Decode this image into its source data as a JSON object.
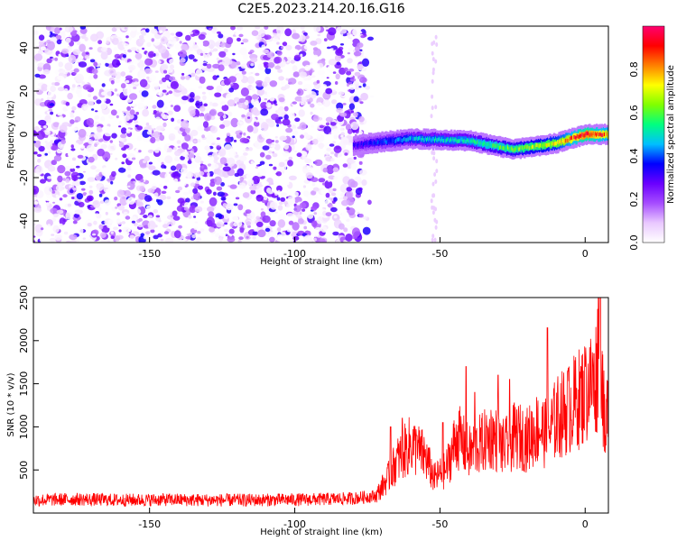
{
  "chart_data": [
    {
      "type": "heatmap",
      "title": "C2E5.2023.214.20.16.G16",
      "xlabel": "Height of straight line (km)",
      "ylabel": "Frequency (Hz)",
      "xlim": [
        -190,
        8
      ],
      "ylim": [
        -50,
        50
      ],
      "xticks": [
        -150,
        -100,
        -50,
        0
      ],
      "yticks": [
        -40,
        -20,
        0,
        20,
        40
      ],
      "colorbar": {
        "label": "Normalized spectral amplitude",
        "range": [
          0,
          1
        ],
        "ticks": [
          0.0,
          0.2,
          0.4,
          0.6,
          0.8
        ],
        "colormap": "rainbow-white-to-purple-to-red-to-magenta",
        "colors": [
          "#ffffff",
          "#e9c8ff",
          "#a64dff",
          "#6a00ff",
          "#0000ff",
          "#00bfff",
          "#00ff80",
          "#7fff00",
          "#ffff00",
          "#ff8000",
          "#ff0000",
          "#ff0070"
        ]
      },
      "features": {
        "noise_region_x": [
          -190,
          -76
        ],
        "noise_amplitude_range": [
          0.0,
          0.35
        ],
        "signal_band": {
          "x": [
            -80,
            -60,
            -40,
            -25,
            -10,
            0,
            8
          ],
          "frequency": [
            -5,
            -2,
            -3,
            -7,
            -4,
            0,
            0
          ],
          "amplitude": [
            0.3,
            0.45,
            0.5,
            0.6,
            0.7,
            0.95,
            0.8
          ]
        }
      }
    },
    {
      "type": "line",
      "title": "",
      "xlabel": "Height of straight line (km)",
      "ylabel": "SNR (10 * v/v)",
      "xlim": [
        -190,
        8
      ],
      "ylim": [
        0,
        2500
      ],
      "xticks": [
        -150,
        -100,
        -50,
        0
      ],
      "yticks": [
        500,
        1000,
        1500,
        2000,
        2500
      ],
      "color": "#ff0000",
      "series": [
        {
          "x": [
            -190,
            -175,
            -160,
            -145,
            -130,
            -115,
            -100,
            -90,
            -80,
            -72,
            -68,
            -65,
            -60,
            -55,
            -52,
            -48,
            -44,
            -40,
            -36,
            -32,
            -28,
            -24,
            -20,
            -16,
            -13,
            -10,
            -6,
            -3,
            0,
            2,
            4,
            5,
            6,
            7,
            8
          ],
          "values": [
            150,
            160,
            150,
            155,
            150,
            150,
            155,
            160,
            170,
            200,
            400,
            600,
            800,
            650,
            400,
            500,
            900,
            700,
            800,
            900,
            750,
            900,
            850,
            1000,
            900,
            1100,
            1200,
            1300,
            1400,
            1500,
            1600,
            2500,
            1500,
            700,
            1700
          ],
          "spikes": {
            "x": [
              -67,
              -63,
              -58,
              -49,
              -41,
              -38,
              -30,
              -26,
              -13,
              -6,
              0,
              3,
              5
            ],
            "values": [
              1000,
              1100,
              900,
              1050,
              1700,
              1400,
              1600,
              1550,
              2150,
              1650,
              1700,
              1850,
              2500
            ]
          }
        }
      ]
    }
  ]
}
